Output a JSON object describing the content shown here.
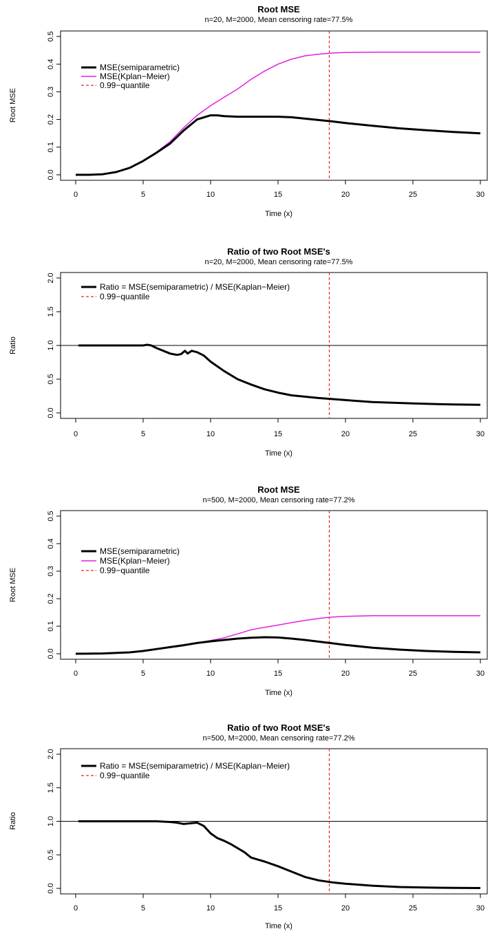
{
  "chart_data": [
    {
      "type": "line",
      "title": "Root MSE",
      "subtitle": "n=20,  M=2000,  Mean censoring rate=77.5%",
      "xlabel": "Time (x)",
      "ylabel": "Root MSE",
      "xlim": [
        0,
        30
      ],
      "ylim": [
        0,
        0.5
      ],
      "xticks": [
        0,
        5,
        10,
        15,
        20,
        25,
        30
      ],
      "yticks": [
        0.0,
        0.1,
        0.2,
        0.3,
        0.4,
        0.5
      ],
      "xtick_labels": [
        "0",
        "5",
        "10",
        "15",
        "20",
        "25",
        "30"
      ],
      "ytick_labels": [
        "0.0",
        "0.1",
        "0.2",
        "0.3",
        "0.4",
        "0.5"
      ],
      "legend_position": "upper-left",
      "vline": {
        "x": 18.8,
        "color": "#e0282a",
        "style": "dashed"
      },
      "series": [
        {
          "name": "MSE(semiparametric)",
          "color": "#000000",
          "width": 3,
          "x": [
            0,
            1,
            2,
            3,
            4,
            5,
            6,
            7,
            8,
            9,
            10,
            10.5,
            11,
            12,
            13,
            14,
            15,
            16,
            17,
            18,
            19,
            20,
            22,
            24,
            26,
            28,
            30
          ],
          "y": [
            0.0,
            0.0,
            0.002,
            0.01,
            0.025,
            0.05,
            0.08,
            0.113,
            0.16,
            0.2,
            0.215,
            0.215,
            0.212,
            0.21,
            0.21,
            0.21,
            0.21,
            0.208,
            0.203,
            0.198,
            0.193,
            0.187,
            0.177,
            0.168,
            0.161,
            0.155,
            0.15
          ]
        },
        {
          "name": "MSE(Kplan−Meier)",
          "color": "#e020e0",
          "width": 1.5,
          "x": [
            0,
            1,
            2,
            3,
            4,
            5,
            6,
            7,
            8,
            9,
            10,
            11,
            12,
            13,
            14,
            15,
            16,
            17,
            18,
            19,
            20,
            22,
            24,
            26,
            28,
            30
          ],
          "y": [
            0.0,
            0.0,
            0.002,
            0.01,
            0.025,
            0.05,
            0.082,
            0.12,
            0.17,
            0.215,
            0.25,
            0.28,
            0.31,
            0.345,
            0.375,
            0.4,
            0.418,
            0.43,
            0.436,
            0.44,
            0.442,
            0.443,
            0.443,
            0.443,
            0.443,
            0.443
          ]
        }
      ],
      "legend_entries": [
        "MSE(semiparametric)",
        "MSE(Kplan−Meier)",
        "0.99−quantile"
      ]
    },
    {
      "type": "line",
      "title": "Ratio of two Root MSE's",
      "subtitle": "n=20,  M=2000,  Mean censoring rate=77.5%",
      "xlabel": "Time (x)",
      "ylabel": "Ratio",
      "xlim": [
        0,
        30
      ],
      "ylim": [
        0,
        2
      ],
      "xticks": [
        0,
        5,
        10,
        15,
        20,
        25,
        30
      ],
      "yticks": [
        0.0,
        0.5,
        1.0,
        1.5,
        2.0
      ],
      "xtick_labels": [
        "0",
        "5",
        "10",
        "15",
        "20",
        "25",
        "30"
      ],
      "ytick_labels": [
        "0.0",
        "0.5",
        "1.0",
        "1.5",
        "2.0"
      ],
      "legend_position": "upper-left",
      "hline": {
        "y": 1.0,
        "color": "#000000"
      },
      "vline": {
        "x": 18.8,
        "color": "#e0282a",
        "style": "dashed"
      },
      "series": [
        {
          "name": "Ratio = MSE(semiparametric) / MSE(Kaplan−Meier)",
          "color": "#000000",
          "width": 3,
          "x": [
            0.2,
            1,
            2,
            3,
            4,
            5,
            5.3,
            5.6,
            6,
            6.5,
            7,
            7.5,
            7.8,
            8.1,
            8.3,
            8.6,
            9,
            9.5,
            10,
            11,
            12,
            13,
            14,
            15,
            16,
            18,
            20,
            22,
            25,
            28,
            30
          ],
          "y": [
            1.0,
            1.0,
            1.0,
            1.0,
            1.0,
            1.0,
            1.01,
            1.0,
            0.96,
            0.92,
            0.88,
            0.86,
            0.87,
            0.92,
            0.88,
            0.92,
            0.9,
            0.85,
            0.76,
            0.62,
            0.5,
            0.42,
            0.35,
            0.3,
            0.26,
            0.22,
            0.19,
            0.16,
            0.14,
            0.125,
            0.12
          ]
        }
      ],
      "legend_entries": [
        "Ratio = MSE(semiparametric) / MSE(Kaplan−Meier)",
        "0.99−quantile"
      ]
    },
    {
      "type": "line",
      "title": "Root MSE",
      "subtitle": "n=500,  M=2000,  Mean censoring rate=77.2%",
      "xlabel": "Time (x)",
      "ylabel": "Root MSE",
      "xlim": [
        0,
        30
      ],
      "ylim": [
        0,
        0.5
      ],
      "xticks": [
        0,
        5,
        10,
        15,
        20,
        25,
        30
      ],
      "yticks": [
        0.0,
        0.1,
        0.2,
        0.3,
        0.4,
        0.5
      ],
      "xtick_labels": [
        "0",
        "5",
        "10",
        "15",
        "20",
        "25",
        "30"
      ],
      "ytick_labels": [
        "0.0",
        "0.1",
        "0.2",
        "0.3",
        "0.4",
        "0.5"
      ],
      "legend_position": "upper-left",
      "vline": {
        "x": 18.8,
        "color": "#e0282a",
        "style": "dashed"
      },
      "series": [
        {
          "name": "MSE(semiparametric)",
          "color": "#000000",
          "width": 3,
          "x": [
            0,
            2,
            4,
            5,
            6,
            7,
            8,
            9,
            10,
            11,
            12,
            13,
            14,
            15,
            16,
            17,
            18,
            19,
            20,
            22,
            24,
            26,
            28,
            30
          ],
          "y": [
            0.0,
            0.001,
            0.005,
            0.01,
            0.017,
            0.024,
            0.031,
            0.039,
            0.045,
            0.05,
            0.055,
            0.058,
            0.06,
            0.059,
            0.055,
            0.05,
            0.044,
            0.038,
            0.032,
            0.022,
            0.015,
            0.01,
            0.007,
            0.005
          ]
        },
        {
          "name": "MSE(Kplan−Meier)",
          "color": "#e020e0",
          "width": 1.5,
          "x": [
            0,
            2,
            4,
            5,
            6,
            7,
            8,
            9,
            10,
            11,
            12,
            13,
            14,
            15,
            16,
            17,
            18,
            19,
            20,
            22,
            24,
            26,
            28,
            30
          ],
          "y": [
            0.0,
            0.001,
            0.005,
            0.01,
            0.017,
            0.024,
            0.031,
            0.039,
            0.048,
            0.058,
            0.072,
            0.087,
            0.096,
            0.104,
            0.113,
            0.121,
            0.128,
            0.133,
            0.136,
            0.138,
            0.138,
            0.138,
            0.138,
            0.138
          ]
        }
      ],
      "legend_entries": [
        "MSE(semiparametric)",
        "MSE(Kplan−Meier)",
        "0.99−quantile"
      ]
    },
    {
      "type": "line",
      "title": "Ratio of two Root MSE's",
      "subtitle": "n=500,  M=2000,  Mean censoring rate=77.2%",
      "xlabel": "Time (x)",
      "ylabel": "Ratio",
      "xlim": [
        0,
        30
      ],
      "ylim": [
        0,
        2
      ],
      "xticks": [
        0,
        5,
        10,
        15,
        20,
        25,
        30
      ],
      "yticks": [
        0.0,
        0.5,
        1.0,
        1.5,
        2.0
      ],
      "xtick_labels": [
        "0",
        "5",
        "10",
        "15",
        "20",
        "25",
        "30"
      ],
      "ytick_labels": [
        "0.0",
        "0.5",
        "1.0",
        "1.5",
        "2.0"
      ],
      "legend_position": "upper-left",
      "hline": {
        "y": 1.0,
        "color": "#000000"
      },
      "vline": {
        "x": 18.8,
        "color": "#e0282a",
        "style": "dashed"
      },
      "series": [
        {
          "name": "Ratio = MSE(semiparametric) / MSE(Kaplan−Meier)",
          "color": "#000000",
          "width": 3,
          "x": [
            0.2,
            2,
            4,
            5,
            6,
            7,
            7.5,
            8,
            8.5,
            9,
            9.5,
            10,
            10.5,
            11,
            11.5,
            12,
            12.5,
            13,
            14,
            15,
            16,
            17,
            18,
            19,
            20,
            22,
            24,
            26,
            28,
            30
          ],
          "y": [
            1.0,
            1.0,
            1.0,
            1.0,
            1.0,
            0.99,
            0.98,
            0.96,
            0.97,
            0.98,
            0.93,
            0.82,
            0.75,
            0.71,
            0.66,
            0.6,
            0.54,
            0.46,
            0.4,
            0.33,
            0.25,
            0.17,
            0.12,
            0.09,
            0.07,
            0.04,
            0.02,
            0.012,
            0.008,
            0.005
          ]
        }
      ],
      "legend_entries": [
        "Ratio = MSE(semiparametric) / MSE(Kaplan−Meier)",
        "0.99−quantile"
      ]
    }
  ]
}
